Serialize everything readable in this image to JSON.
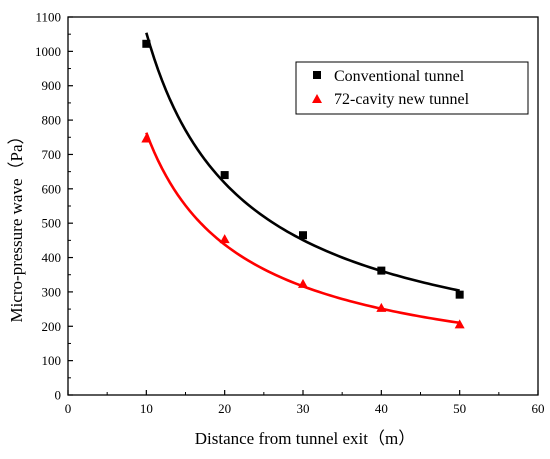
{
  "chart_data": {
    "type": "scatter",
    "xlabel": "Distance from tunnel exit（m）",
    "ylabel": "Micro-pressure wave（Pa）",
    "xlim": [
      0,
      60
    ],
    "ylim": [
      0,
      1100
    ],
    "x_ticks": [
      0,
      10,
      20,
      30,
      40,
      50,
      60
    ],
    "y_ticks": [
      0,
      100,
      200,
      300,
      400,
      500,
      600,
      700,
      800,
      900,
      1000,
      1100
    ],
    "grid": false,
    "legend_position": "top-right",
    "series": [
      {
        "name": "Conventional tunnel",
        "marker": "square",
        "color": "#000000",
        "x": [
          10,
          20,
          30,
          40,
          50
        ],
        "y": [
          1022,
          640,
          465,
          362,
          292
        ],
        "fit_curve": true
      },
      {
        "name": "72-cavity new tunnel",
        "marker": "triangle",
        "color": "#ff0000",
        "x": [
          10,
          20,
          30,
          40,
          50
        ],
        "y": [
          745,
          452,
          322,
          252,
          204
        ],
        "fit_curve": true
      }
    ]
  }
}
